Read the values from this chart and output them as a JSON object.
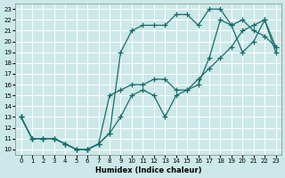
{
  "xlabel": "Humidex (Indice chaleur)",
  "bg_color": "#cce8e8",
  "grid_color": "#ffffff",
  "line_color": "#1a6b6b",
  "xlim": [
    -0.5,
    23.5
  ],
  "ylim": [
    9.5,
    23.5
  ],
  "xticks": [
    0,
    1,
    2,
    3,
    4,
    5,
    6,
    7,
    8,
    9,
    10,
    11,
    12,
    13,
    14,
    15,
    16,
    17,
    18,
    19,
    20,
    21,
    22,
    23
  ],
  "yticks": [
    10,
    11,
    12,
    13,
    14,
    15,
    16,
    17,
    18,
    19,
    20,
    21,
    22,
    23
  ],
  "line1_x": [
    0,
    1,
    2,
    3,
    4,
    5,
    6,
    7,
    8,
    9,
    10,
    11,
    12,
    13,
    14,
    15,
    16,
    17,
    18,
    19,
    20,
    21,
    22,
    23
  ],
  "line1_y": [
    13,
    11,
    11,
    11,
    10.5,
    10,
    10,
    10.5,
    11.5,
    13,
    15,
    15.5,
    15,
    13,
    15,
    15.5,
    16.5,
    17.5,
    18.5,
    19.5,
    21,
    21.5,
    22,
    19.5
  ],
  "line2_x": [
    0,
    1,
    2,
    3,
    4,
    5,
    6,
    7,
    8,
    9,
    10,
    11,
    12,
    13,
    14,
    15,
    16,
    17,
    18,
    19,
    20,
    21,
    22,
    23
  ],
  "line2_y": [
    13,
    11,
    11,
    11,
    10.5,
    10,
    10,
    10.5,
    11.5,
    19,
    21,
    21.5,
    21.5,
    21.5,
    22.5,
    22.5,
    21.5,
    23,
    23,
    21.5,
    22,
    21,
    20.5,
    19.5
  ],
  "line3_x": [
    0,
    1,
    2,
    3,
    4,
    5,
    6,
    7,
    8,
    9,
    10,
    11,
    12,
    13,
    14,
    15,
    16,
    17,
    18,
    19,
    20,
    21,
    22,
    23
  ],
  "line3_y": [
    13,
    11,
    11,
    11,
    10.5,
    10,
    10,
    10.5,
    15,
    15.5,
    16,
    16,
    16.5,
    16.5,
    15.5,
    15.5,
    16,
    18.5,
    22,
    21.5,
    19,
    20,
    22,
    19
  ]
}
